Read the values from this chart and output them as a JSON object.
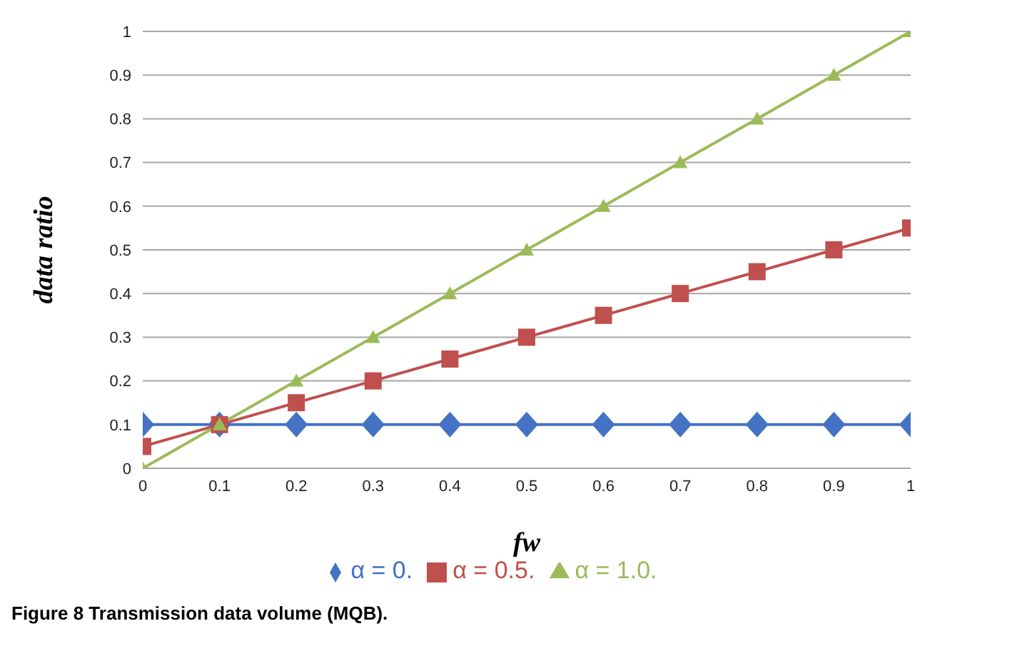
{
  "chart_data": {
    "type": "line",
    "xlabel": "fw",
    "ylabel": "data ratio",
    "annotations": [
      "Figure 8 Transmission data volume (MQB)."
    ],
    "x": [
      0,
      0.1,
      0.2,
      0.3,
      0.4,
      0.5,
      0.6,
      0.7,
      0.8,
      0.9,
      1
    ],
    "series": [
      {
        "name": "α = 0.",
        "color": "#4472c4",
        "marker": "diamond",
        "values": [
          0.1,
          0.1,
          0.1,
          0.1,
          0.1,
          0.1,
          0.1,
          0.1,
          0.1,
          0.1,
          0.1
        ]
      },
      {
        "name": "α = 0.5.",
        "color": "#c0504d",
        "marker": "square",
        "values": [
          0.05,
          0.1,
          0.15,
          0.2,
          0.25,
          0.3,
          0.35,
          0.4,
          0.45,
          0.5,
          0.55
        ]
      },
      {
        "name": "α = 1.0.",
        "color": "#9bbb59",
        "marker": "triangle",
        "values": [
          0,
          0.1,
          0.2,
          0.3,
          0.4,
          0.5,
          0.6,
          0.7,
          0.8,
          0.9,
          1
        ]
      }
    ],
    "xlim": [
      0,
      1
    ],
    "xticks": [
      0,
      0.1,
      0.2,
      0.3,
      0.4,
      0.5,
      0.6,
      0.7,
      0.8,
      0.9,
      1
    ],
    "ylim": [
      0,
      1
    ],
    "yticks": [
      0,
      0.1,
      0.2,
      0.3,
      0.4,
      0.5,
      0.6,
      0.7,
      0.8,
      0.9,
      1
    ],
    "grid": "y",
    "legend": "bottom"
  }
}
